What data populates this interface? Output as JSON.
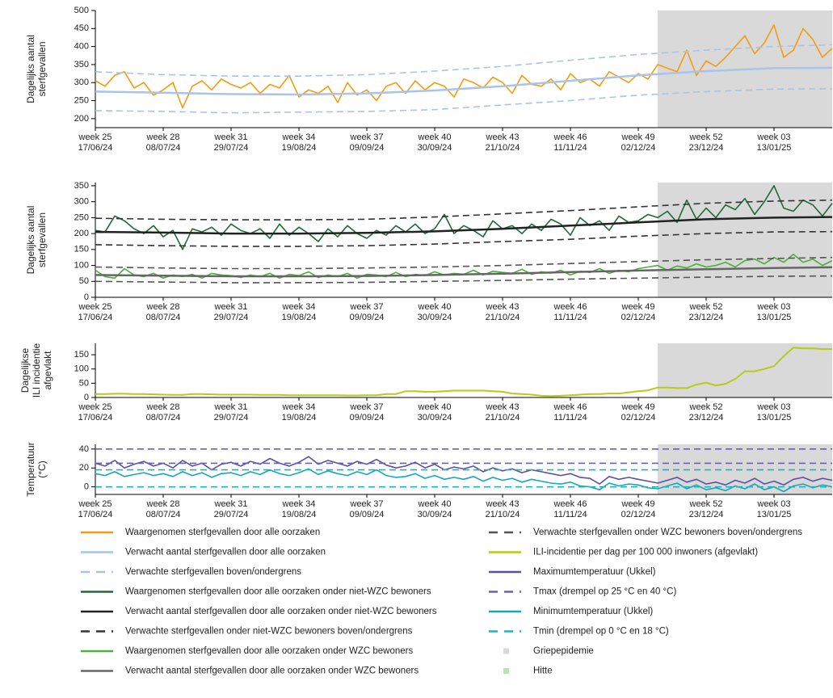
{
  "x_axis": {
    "xlim": [
      0,
      228
    ],
    "xticks": [
      {
        "value": 0,
        "label": "week 25",
        "date": "17/06/24"
      },
      {
        "value": 21,
        "label": "week 28",
        "date": "08/07/24"
      },
      {
        "value": 42,
        "label": "week 31",
        "date": "29/07/24"
      },
      {
        "value": 63,
        "label": "week 34",
        "date": "19/08/24"
      },
      {
        "value": 84,
        "label": "week 37",
        "date": "09/09/24"
      },
      {
        "value": 105,
        "label": "week 40",
        "date": "30/09/24"
      },
      {
        "value": 126,
        "label": "week 43",
        "date": "21/10/24"
      },
      {
        "value": 147,
        "label": "week 46",
        "date": "11/11/24"
      },
      {
        "value": 168,
        "label": "week 49",
        "date": "02/12/24"
      },
      {
        "value": 189,
        "label": "week 52",
        "date": "23/12/24"
      },
      {
        "value": 210,
        "label": "week 03",
        "date": "13/01/25"
      }
    ]
  },
  "flu_period": {
    "name": "Griepepidemie",
    "color": "#d9d9d9",
    "start": 174,
    "end": 228
  },
  "heat": {
    "name": "Hitte",
    "color": "#b7e4b0"
  },
  "chart_data": [
    {
      "type": "line",
      "ylabel": [
        "Dagelijks aantal",
        "sterfgevallen"
      ],
      "ylim": [
        175,
        500
      ],
      "yticks": [
        200,
        250,
        300,
        350,
        400,
        450,
        500
      ],
      "x": [
        0,
        3,
        6,
        9,
        12,
        15,
        18,
        21,
        24,
        27,
        30,
        33,
        36,
        39,
        42,
        45,
        48,
        51,
        54,
        57,
        60,
        63,
        66,
        69,
        72,
        75,
        78,
        81,
        84,
        87,
        90,
        93,
        96,
        99,
        102,
        105,
        108,
        111,
        114,
        117,
        120,
        123,
        126,
        129,
        132,
        135,
        138,
        141,
        144,
        147,
        150,
        153,
        156,
        159,
        162,
        165,
        168,
        171,
        174,
        177,
        180,
        183,
        186,
        189,
        192,
        195,
        198,
        201,
        204,
        207,
        210,
        213,
        216,
        219,
        222,
        225,
        228
      ],
      "series": [
        {
          "name": "Waargenomen sterfgevallen door alle oorzaken",
          "color": "#f39c12",
          "values": [
            305,
            290,
            320,
            330,
            285,
            300,
            265,
            280,
            300,
            230,
            290,
            305,
            280,
            310,
            295,
            285,
            300,
            270,
            295,
            285,
            320,
            260,
            280,
            270,
            290,
            245,
            300,
            265,
            280,
            250,
            290,
            300,
            270,
            305,
            280,
            300,
            290,
            260,
            310,
            300,
            285,
            315,
            300,
            270,
            320,
            295,
            290,
            310,
            280,
            325,
            300,
            310,
            290,
            330,
            315,
            300,
            325,
            310,
            350,
            340,
            330,
            390,
            320,
            360,
            345,
            370,
            400,
            430,
            380,
            410,
            460,
            370,
            390,
            450,
            420,
            370,
            395
          ]
        },
        {
          "name": "Verwacht aantal sterfgevallen door alle oorzaken",
          "color": "#a9c4e8",
          "width": 2.5,
          "x": [
            0,
            21,
            42,
            63,
            84,
            105,
            126,
            147,
            168,
            189,
            210,
            228
          ],
          "values": [
            275,
            272,
            268,
            267,
            270,
            278,
            290,
            305,
            320,
            332,
            340,
            341
          ]
        },
        {
          "name": "Verwachte sterfgevallen boven/ondergrens",
          "color": "#a9c4e8",
          "dash": true,
          "x": [
            0,
            21,
            42,
            63,
            84,
            105,
            126,
            147,
            168,
            189,
            210,
            228
          ],
          "upper": [
            330,
            322,
            318,
            318,
            322,
            332,
            345,
            362,
            378,
            390,
            400,
            405
          ],
          "lower": [
            222,
            220,
            216,
            218,
            220,
            225,
            238,
            250,
            265,
            275,
            282,
            283
          ]
        }
      ]
    },
    {
      "type": "line",
      "ylabel": [
        "Dagelijks aantal",
        "sterfgevallen"
      ],
      "ylim": [
        0,
        360
      ],
      "yticks": [
        0,
        50,
        100,
        150,
        200,
        250,
        300,
        350
      ],
      "x": [
        0,
        3,
        6,
        9,
        12,
        15,
        18,
        21,
        24,
        27,
        30,
        33,
        36,
        39,
        42,
        45,
        48,
        51,
        54,
        57,
        60,
        63,
        66,
        69,
        72,
        75,
        78,
        81,
        84,
        87,
        90,
        93,
        96,
        99,
        102,
        105,
        108,
        111,
        114,
        117,
        120,
        123,
        126,
        129,
        132,
        135,
        138,
        141,
        144,
        147,
        150,
        153,
        156,
        159,
        162,
        165,
        168,
        171,
        174,
        177,
        180,
        183,
        186,
        189,
        192,
        195,
        198,
        201,
        204,
        207,
        210,
        213,
        216,
        219,
        222,
        225,
        228
      ],
      "series": [
        {
          "name": "Waargenomen sterfgevallen door alle oorzaken onder niet-WZC bewoners",
          "color": "#1e6b3a",
          "values": [
            210,
            205,
            255,
            240,
            215,
            200,
            225,
            190,
            210,
            150,
            215,
            205,
            220,
            195,
            230,
            210,
            200,
            215,
            185,
            230,
            195,
            220,
            200,
            175,
            215,
            190,
            225,
            200,
            185,
            210,
            195,
            225,
            205,
            230,
            200,
            215,
            260,
            200,
            225,
            210,
            190,
            240,
            215,
            225,
            200,
            230,
            210,
            245,
            230,
            195,
            250,
            225,
            240,
            210,
            255,
            235,
            240,
            260,
            250,
            270,
            235,
            305,
            245,
            280,
            250,
            290,
            275,
            310,
            260,
            300,
            350,
            280,
            270,
            305,
            290,
            255,
            295
          ]
        },
        {
          "name": "Verwacht aantal sterfgevallen door alle oorzaken onder niet-WZC bewoners",
          "color": "#222222",
          "width": 2.5,
          "x": [
            0,
            21,
            42,
            63,
            84,
            105,
            126,
            147,
            168,
            189,
            210,
            228
          ],
          "values": [
            205,
            203,
            200,
            200,
            202,
            207,
            215,
            225,
            235,
            245,
            250,
            252
          ]
        },
        {
          "name": "Verwachte sterfgevallen onder niet-WZC bewoners boven/ondergrens",
          "color": "#333333",
          "dash": true,
          "x": [
            0,
            21,
            42,
            63,
            84,
            105,
            126,
            147,
            168,
            189,
            210,
            228
          ],
          "upper": [
            248,
            245,
            243,
            243,
            245,
            252,
            262,
            272,
            284,
            295,
            302,
            305
          ],
          "lower": [
            165,
            162,
            160,
            160,
            162,
            167,
            175,
            182,
            192,
            200,
            205,
            206
          ]
        },
        {
          "name": "Waargenomen sterfgevallen door alle oorzaken onder WZC bewoners",
          "color": "#4caf3a",
          "values": [
            85,
            65,
            60,
            90,
            70,
            65,
            75,
            60,
            70,
            65,
            72,
            60,
            75,
            70,
            68,
            62,
            70,
            65,
            75,
            60,
            72,
            68,
            80,
            62,
            70,
            65,
            75,
            60,
            72,
            70,
            65,
            78,
            65,
            72,
            68,
            80,
            70,
            75,
            72,
            85,
            70,
            82,
            78,
            75,
            88,
            72,
            80,
            76,
            85,
            70,
            82,
            78,
            90,
            75,
            85,
            80,
            90,
            95,
            100,
            85,
            98,
            92,
            105,
            95,
            100,
            110,
            95,
            115,
            120,
            105,
            125,
            110,
            135,
            110,
            120,
            100,
            115
          ]
        },
        {
          "name": "Verwacht aantal sterfgevallen door alle oorzaken onder WZC bewoners",
          "color": "#666666",
          "width": 2.5,
          "x": [
            0,
            21,
            42,
            63,
            84,
            105,
            126,
            147,
            168,
            189,
            210,
            228
          ],
          "values": [
            70,
            68,
            66,
            66,
            67,
            70,
            74,
            79,
            84,
            88,
            92,
            94
          ]
        },
        {
          "name": "Verwachte sterfgevallen onder WZC bewoners boven/ondergrens",
          "color": "#555555",
          "dash": true,
          "x": [
            0,
            21,
            42,
            63,
            84,
            105,
            126,
            147,
            168,
            189,
            210,
            228
          ],
          "upper": [
            95,
            92,
            90,
            90,
            92,
            95,
            100,
            106,
            112,
            118,
            122,
            125
          ],
          "lower": [
            50,
            48,
            46,
            46,
            47,
            50,
            53,
            57,
            60,
            63,
            66,
            67
          ]
        }
      ]
    },
    {
      "type": "line",
      "ylabel": [
        "Dagelijkse",
        "ILI incidentie",
        "afgevlakt"
      ],
      "ylim": [
        0,
        190
      ],
      "yticks": [
        0,
        50,
        100,
        150
      ],
      "x": [
        0,
        3,
        6,
        9,
        12,
        15,
        18,
        21,
        24,
        27,
        30,
        33,
        36,
        39,
        42,
        45,
        48,
        51,
        54,
        57,
        60,
        63,
        66,
        69,
        72,
        75,
        78,
        81,
        84,
        87,
        90,
        93,
        96,
        99,
        102,
        105,
        108,
        111,
        114,
        117,
        120,
        123,
        126,
        129,
        132,
        135,
        138,
        141,
        144,
        147,
        150,
        153,
        156,
        159,
        162,
        165,
        168,
        171,
        174,
        177,
        180,
        183,
        186,
        189,
        192,
        195,
        198,
        201,
        204,
        207,
        210,
        213,
        216,
        219,
        222,
        225,
        228
      ],
      "series": [
        {
          "name": "ILI-incidentie per dag per 100 000 inwoners (afgevlakt)",
          "color": "#b5cc18",
          "width": 2,
          "values": [
            12,
            12,
            13,
            13,
            12,
            12,
            11,
            10,
            9,
            9,
            12,
            12,
            11,
            10,
            10,
            10,
            10,
            9,
            9,
            9,
            8,
            8,
            8,
            8,
            8,
            8,
            7,
            7,
            8,
            8,
            12,
            12,
            22,
            22,
            20,
            20,
            22,
            24,
            24,
            24,
            24,
            22,
            20,
            14,
            12,
            10,
            6,
            5,
            6,
            8,
            10,
            12,
            12,
            14,
            14,
            18,
            22,
            25,
            35,
            35,
            33,
            33,
            45,
            52,
            42,
            48,
            65,
            92,
            92,
            100,
            110,
            145,
            175,
            172,
            172,
            170,
            170
          ]
        }
      ]
    },
    {
      "type": "line",
      "ylabel": [
        "Temperatuur",
        "(°C)"
      ],
      "ylim": [
        -8,
        45
      ],
      "yticks": [
        0,
        20,
        40
      ],
      "x": [
        0,
        3,
        6,
        9,
        12,
        15,
        18,
        21,
        24,
        27,
        30,
        33,
        36,
        39,
        42,
        45,
        48,
        51,
        54,
        57,
        60,
        63,
        66,
        69,
        72,
        75,
        78,
        81,
        84,
        87,
        90,
        93,
        96,
        99,
        102,
        105,
        108,
        111,
        114,
        117,
        120,
        123,
        126,
        129,
        132,
        135,
        138,
        141,
        144,
        147,
        150,
        153,
        156,
        159,
        162,
        165,
        168,
        171,
        174,
        177,
        180,
        183,
        186,
        189,
        192,
        195,
        198,
        201,
        204,
        207,
        210,
        213,
        216,
        219,
        222,
        225,
        228
      ],
      "series": [
        {
          "name": "Maximumtemperatuur (Ukkel)",
          "color": "#5e4fa2",
          "values": [
            25,
            22,
            28,
            20,
            24,
            27,
            22,
            25,
            20,
            28,
            22,
            25,
            18,
            24,
            26,
            22,
            27,
            24,
            30,
            25,
            22,
            26,
            32,
            24,
            28,
            25,
            22,
            27,
            24,
            29,
            23,
            20,
            22,
            26,
            20,
            24,
            18,
            21,
            19,
            22,
            16,
            20,
            17,
            19,
            15,
            18,
            16,
            14,
            12,
            14,
            10,
            9,
            3,
            11,
            8,
            10,
            8,
            6,
            4,
            7,
            10,
            5,
            8,
            3,
            5,
            2,
            7,
            4,
            9,
            3,
            6,
            2,
            8,
            10,
            6,
            9,
            7
          ]
        },
        {
          "name": "Tmax (drempel op 25 °C en 40 °C)",
          "color": "#6a5acd",
          "dash": true,
          "levels": [
            25,
            40
          ]
        },
        {
          "name": "Minimumtemperatuur (Ukkel)",
          "color": "#17a8b8",
          "values": [
            14,
            12,
            16,
            11,
            13,
            15,
            12,
            14,
            11,
            16,
            12,
            15,
            10,
            14,
            15,
            12,
            16,
            13,
            18,
            14,
            12,
            15,
            19,
            13,
            17,
            14,
            12,
            16,
            13,
            18,
            12,
            10,
            11,
            14,
            9,
            12,
            8,
            10,
            8,
            11,
            6,
            10,
            7,
            9,
            5,
            8,
            6,
            4,
            3,
            5,
            1,
            0,
            -3,
            4,
            1,
            3,
            2,
            -1,
            -2,
            1,
            4,
            -2,
            2,
            -3,
            -1,
            -4,
            1,
            -2,
            3,
            -3,
            0,
            -5,
            1,
            3,
            -1,
            2,
            0
          ]
        },
        {
          "name": "Tmin (drempel op 0 °C en 18 °C)",
          "color": "#20b2c0",
          "dash": true,
          "levels": [
            0,
            18
          ]
        }
      ]
    }
  ]
}
